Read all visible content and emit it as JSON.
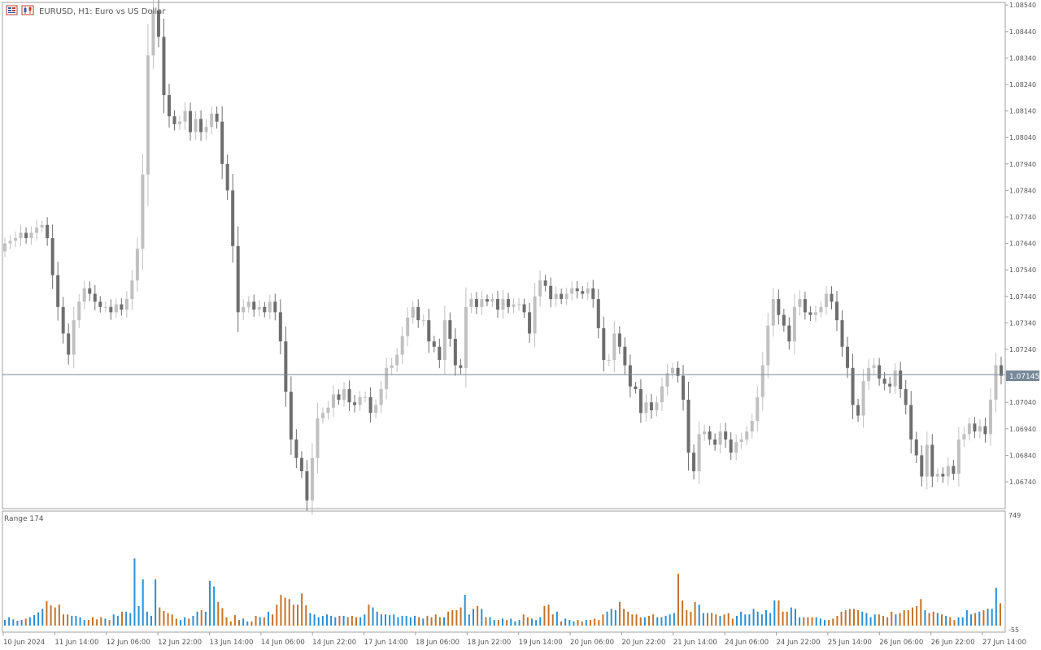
{
  "main_pane": {
    "title": "EURUSD, H1:  Euro vs US Dollar",
    "current_price_label": "1.07145"
  },
  "volume_pane": {
    "title": "Range 174",
    "scale_top": "749",
    "scale_bottom": "-55"
  },
  "icons": [
    "chart-window-icon",
    "candles-icon"
  ],
  "colors": {
    "bull": "#c0c0c0",
    "bear": "#6e6e6e",
    "range_up": "#2a8fd4",
    "range_down": "#c4732a",
    "price_line": "#778899",
    "axis": "#a0a0a0"
  },
  "chart_data": [
    {
      "type": "candlestick",
      "symbol": "EURUSD",
      "timeframe": "H1",
      "ylim": [
        1.0664,
        1.0859
      ],
      "y_ticks": [
        "1.08540",
        "1.08440",
        "1.08340",
        "1.08240",
        "1.08140",
        "1.08040",
        "1.07940",
        "1.07840",
        "1.07740",
        "1.07640",
        "1.07540",
        "1.07440",
        "1.07340",
        "1.07240",
        "1.07145",
        "1.07040",
        "1.06940",
        "1.06840",
        "1.06740"
      ],
      "x_ticks": [
        "10 Jun 2024",
        "11 Jun 14:00",
        "12 Jun 06:00",
        "12 Jun 22:00",
        "13 Jun 14:00",
        "14 Jun 06:00",
        "14 Jun 22:00",
        "17 Jun 14:00",
        "18 Jun 06:00",
        "18 Jun 22:00",
        "19 Jun 14:00",
        "20 Jun 06:00",
        "20 Jun 22:00",
        "21 Jun 14:00",
        "24 Jun 06:00",
        "24 Jun 22:00",
        "25 Jun 14:00",
        "26 Jun 06:00",
        "26 Jun 22:00",
        "27 Jun 14:00"
      ],
      "last_price": 1.07145,
      "closes": [
        1.0764,
        1.0765,
        1.0766,
        1.0768,
        1.0766,
        1.0768,
        1.077,
        1.0771,
        1.0766,
        1.0752,
        1.074,
        1.073,
        1.0722,
        1.0735,
        1.0742,
        1.0747,
        1.0745,
        1.0742,
        1.074,
        1.074,
        1.0738,
        1.0741,
        1.0739,
        1.0743,
        1.075,
        1.0762,
        1.079,
        1.0835,
        1.0852,
        1.0842,
        1.082,
        1.0812,
        1.0809,
        1.081,
        1.0814,
        1.0806,
        1.0811,
        1.0806,
        1.0808,
        1.0813,
        1.081,
        1.0794,
        1.0784,
        1.0763,
        1.0738,
        1.074,
        1.0742,
        1.0739,
        1.074,
        1.0738,
        1.0742,
        1.0738,
        1.0727,
        1.0708,
        1.069,
        1.0683,
        1.0678,
        1.0667,
        1.0683,
        1.0698,
        1.07,
        1.0702,
        1.0707,
        1.0705,
        1.0709,
        1.0704,
        1.0703,
        1.0706,
        1.0706,
        1.07,
        1.0703,
        1.0709,
        1.0717,
        1.0718,
        1.0722,
        1.0729,
        1.0736,
        1.074,
        1.0735,
        1.0735,
        1.0727,
        1.0725,
        1.072,
        1.0735,
        1.0728,
        1.0718,
        1.0717,
        1.074,
        1.0743,
        1.074,
        1.0743,
        1.0742,
        1.0743,
        1.0739,
        1.0743,
        1.074,
        1.0741,
        1.0741,
        1.0738,
        1.073,
        1.0744,
        1.075,
        1.0748,
        1.0743,
        1.0745,
        1.0743,
        1.0745,
        1.0747,
        1.0746,
        1.0745,
        1.0747,
        1.0743,
        1.0732,
        1.072,
        1.072,
        1.073,
        1.0725,
        1.0718,
        1.071,
        1.0709,
        1.07,
        1.0704,
        1.0701,
        1.0704,
        1.071,
        1.0715,
        1.0717,
        1.0714,
        1.0705,
        1.0685,
        1.0678,
        1.0692,
        1.0693,
        1.069,
        1.0688,
        1.0693,
        1.069,
        1.0685,
        1.0689,
        1.069,
        1.0693,
        1.0697,
        1.0706,
        1.0718,
        1.0733,
        1.0743,
        1.0737,
        1.0733,
        1.0727,
        1.074,
        1.0743,
        1.0738,
        1.0737,
        1.0738,
        1.074,
        1.0745,
        1.0742,
        1.0735,
        1.0725,
        1.0717,
        1.0703,
        1.0699,
        1.0712,
        1.0717,
        1.0718,
        1.0713,
        1.0711,
        1.071,
        1.0716,
        1.0709,
        1.0703,
        1.069,
        1.0684,
        1.0676,
        1.0688,
        1.0676,
        1.0677,
        1.0676,
        1.068,
        1.0677,
        1.069,
        1.0692,
        1.0696,
        1.0693,
        1.0695,
        1.0692,
        1.0705,
        1.0718,
        1.0714
      ]
    },
    {
      "type": "bar",
      "title": "Range 174",
      "ylim": [
        -55,
        749
      ],
      "values": [
        40,
        60,
        45,
        35,
        40,
        50,
        60,
        75,
        95,
        120,
        175,
        145,
        130,
        150,
        80,
        80,
        70,
        70,
        60,
        40,
        40,
        60,
        45,
        60,
        50,
        40,
        80,
        70,
        100,
        100,
        90,
        480,
        140,
        330,
        100,
        70,
        330,
        130,
        105,
        90,
        80,
        50,
        40,
        60,
        50,
        70,
        100,
        110,
        100,
        320,
        280,
        170,
        125,
        60,
        30,
        75,
        40,
        50,
        30,
        30,
        70,
        60,
        60,
        100,
        80,
        150,
        220,
        200,
        190,
        150,
        150,
        230,
        145,
        90,
        80,
        60,
        70,
        80,
        70,
        60,
        70,
        70,
        60,
        70,
        60,
        60,
        80,
        150,
        130,
        100,
        80,
        80,
        75,
        80,
        60,
        70,
        70,
        60,
        70,
        60,
        50,
        70,
        60,
        80,
        60,
        60,
        100,
        110,
        110,
        130,
        220,
        80,
        120,
        140,
        120,
        60,
        60,
        40,
        40,
        50,
        40,
        50,
        30,
        40,
        80,
        60,
        50,
        40,
        60,
        140,
        150,
        80,
        100,
        30,
        50,
        40,
        30,
        40,
        30,
        40,
        40,
        50,
        40,
        80,
        100,
        120,
        110,
        170,
        120,
        100,
        80,
        80,
        60,
        60,
        70,
        80,
        60,
        60,
        70,
        80,
        90,
        370,
        180,
        110,
        100,
        170,
        150,
        90,
        90,
        90,
        80,
        70,
        80,
        90,
        50,
        70,
        100,
        80,
        80,
        120,
        100,
        80,
        110,
        90,
        180,
        180,
        100,
        100,
        130,
        120,
        60,
        60,
        60,
        60,
        60,
        50,
        40,
        40,
        50,
        70,
        100,
        110,
        120,
        120,
        110,
        100,
        90,
        60,
        80,
        80,
        70,
        60,
        100,
        80,
        90,
        110,
        110,
        130,
        140,
        190,
        110,
        90,
        100,
        90,
        80,
        70,
        60,
        40,
        60,
        60,
        110,
        80,
        90,
        100,
        110,
        120,
        120,
        270,
        160
      ]
    }
  ]
}
